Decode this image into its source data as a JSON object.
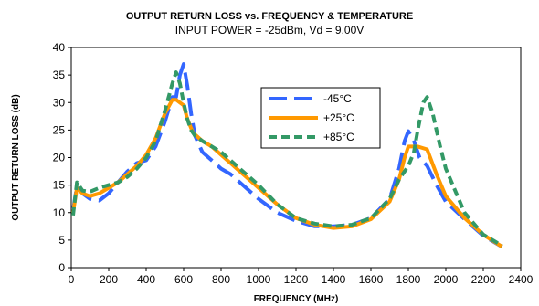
{
  "chart_data": {
    "type": "line",
    "title": "OUTPUT RETURN LOSS  vs. FREQUENCY & TEMPERATURE",
    "subtitle": "INPUT POWER = -25dBm, Vd = 9.00V",
    "xlabel": "FREQUENCY (MHz)",
    "ylabel": "OUTPUT RETURN LOSS (dB)",
    "xlim": [
      0,
      2400
    ],
    "ylim": [
      0,
      40
    ],
    "xticks": [
      0,
      200,
      400,
      600,
      800,
      1000,
      1200,
      1400,
      1600,
      1800,
      2000,
      2200,
      2400
    ],
    "yticks": [
      0,
      5,
      10,
      15,
      20,
      25,
      30,
      35,
      40
    ],
    "grid": false,
    "legend_position": "upper-middle",
    "series": [
      {
        "name": "-45°C",
        "color": "#3366ff",
        "style": "long-dash",
        "x": [
          10,
          30,
          60,
          100,
          150,
          200,
          250,
          300,
          350,
          400,
          450,
          500,
          540,
          560,
          580,
          600,
          620,
          640,
          660,
          700,
          750,
          800,
          850,
          900,
          950,
          1000,
          1100,
          1200,
          1300,
          1400,
          1500,
          1600,
          1700,
          1750,
          1780,
          1800,
          1830,
          1860,
          1900,
          1950,
          2000,
          2100,
          2200,
          2300
        ],
        "y": [
          10.5,
          14.8,
          13.5,
          12.5,
          12.2,
          13.5,
          15.5,
          17.5,
          19.0,
          19.5,
          22.0,
          26.5,
          31.0,
          31.0,
          35.0,
          37.0,
          33.0,
          28.0,
          24.0,
          21.0,
          19.5,
          18.0,
          17.0,
          15.5,
          14.0,
          12.5,
          10.0,
          8.5,
          7.5,
          7.5,
          7.8,
          9.0,
          12.5,
          18.0,
          23.0,
          24.8,
          23.0,
          20.0,
          18.5,
          15.0,
          12.0,
          8.8,
          5.8,
          3.8
        ]
      },
      {
        "name": "+25°C",
        "color": "#ff9900",
        "style": "solid",
        "x": [
          10,
          30,
          60,
          100,
          150,
          200,
          250,
          300,
          350,
          400,
          450,
          500,
          540,
          560,
          580,
          600,
          620,
          650,
          700,
          750,
          800,
          850,
          900,
          950,
          1000,
          1100,
          1200,
          1300,
          1400,
          1500,
          1600,
          1700,
          1750,
          1780,
          1800,
          1850,
          1900,
          1950,
          2000,
          2100,
          2200,
          2300
        ],
        "y": [
          10.0,
          14.5,
          13.5,
          13.0,
          13.5,
          14.5,
          15.5,
          17.0,
          18.5,
          20.5,
          23.5,
          28.0,
          30.5,
          30.5,
          30.0,
          29.5,
          27.0,
          24.5,
          23.0,
          22.0,
          20.5,
          19.0,
          17.5,
          16.0,
          14.5,
          11.5,
          9.0,
          7.8,
          7.2,
          7.5,
          8.8,
          12.0,
          16.0,
          20.0,
          22.0,
          22.0,
          21.5,
          17.0,
          13.0,
          9.0,
          6.0,
          3.8
        ]
      },
      {
        "name": "+85°C",
        "color": "#339966",
        "style": "short-dash",
        "x": [
          10,
          30,
          60,
          100,
          150,
          200,
          250,
          300,
          350,
          400,
          450,
          500,
          540,
          560,
          580,
          600,
          620,
          640,
          660,
          700,
          750,
          800,
          850,
          900,
          950,
          1000,
          1100,
          1200,
          1300,
          1400,
          1500,
          1600,
          1700,
          1750,
          1800,
          1830,
          1850,
          1880,
          1900,
          1930,
          1970,
          2000,
          2100,
          2200,
          2300
        ],
        "y": [
          9.5,
          15.5,
          14.0,
          13.8,
          14.5,
          15.0,
          15.5,
          16.5,
          18.0,
          20.0,
          23.0,
          28.5,
          33.5,
          35.5,
          33.5,
          30.0,
          27.0,
          25.0,
          24.0,
          23.0,
          22.0,
          21.0,
          19.5,
          18.0,
          16.5,
          15.0,
          11.5,
          9.0,
          8.0,
          7.5,
          7.8,
          9.0,
          12.5,
          16.0,
          18.5,
          21.0,
          25.0,
          30.0,
          31.0,
          28.0,
          22.0,
          18.0,
          10.0,
          6.0,
          4.0
        ]
      }
    ]
  }
}
